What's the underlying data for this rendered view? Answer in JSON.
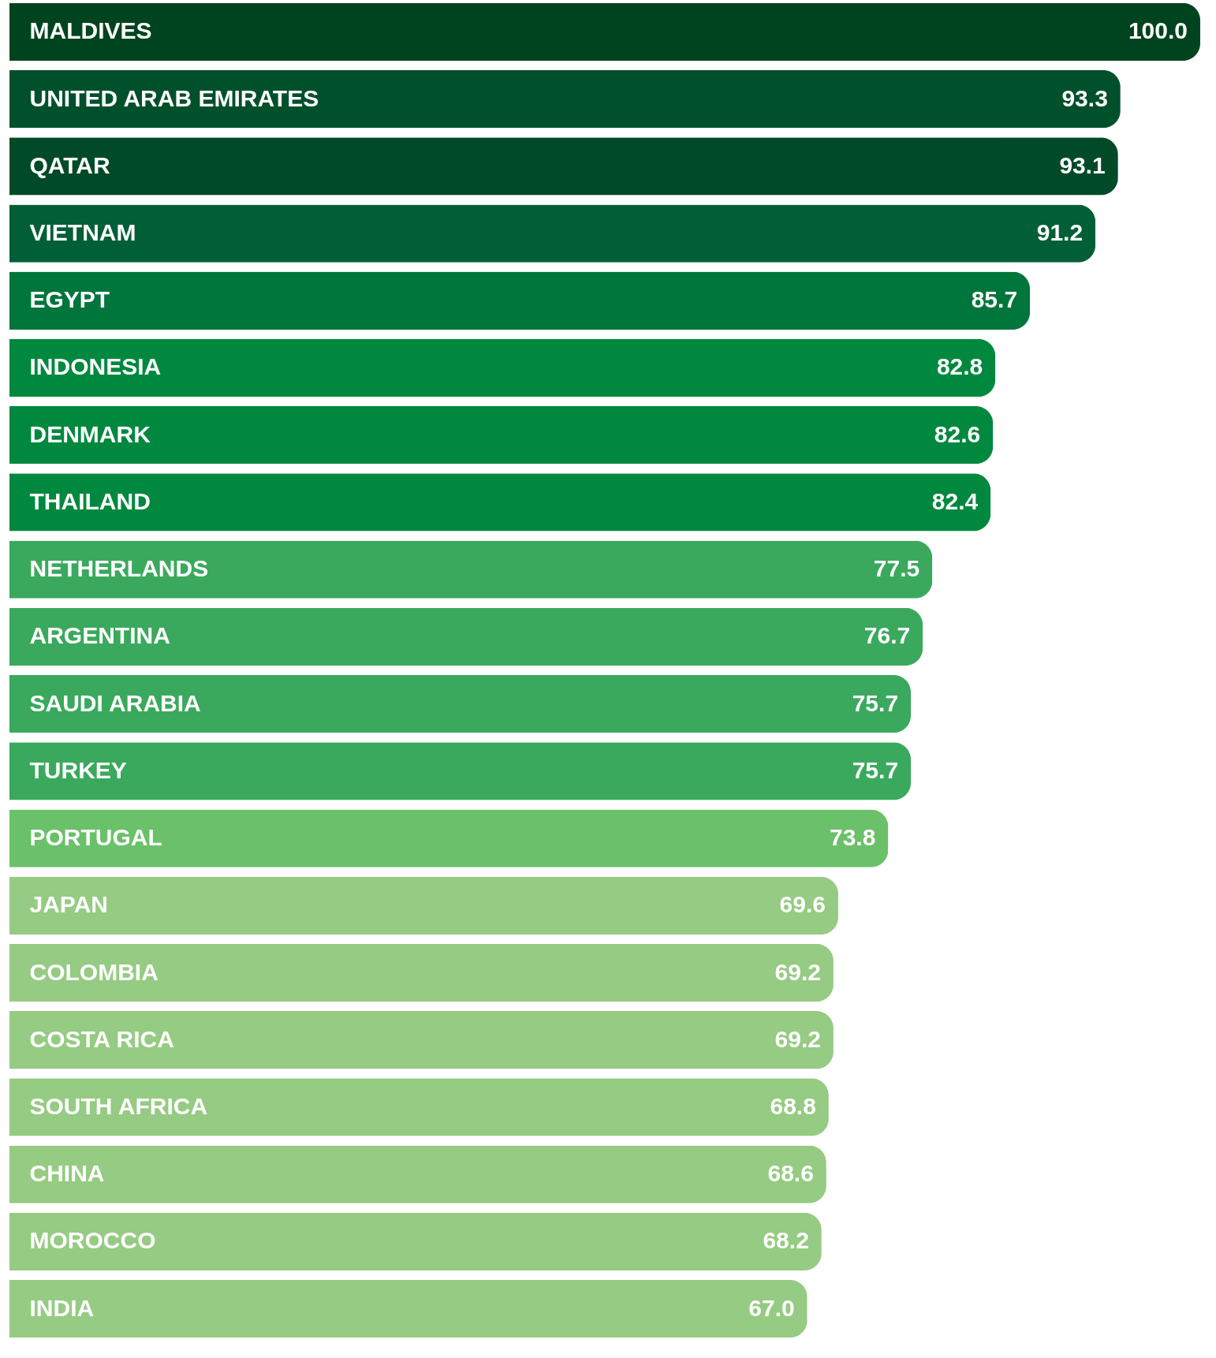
{
  "chart_data": {
    "type": "bar",
    "orientation": "horizontal",
    "value_labels": [
      "100.0",
      "93.3",
      "93.1",
      "91.2",
      "85.7",
      "82.8",
      "82.6",
      "82.4",
      "77.5",
      "76.7",
      "75.7",
      "75.7",
      "73.8",
      "69.6",
      "69.2",
      "69.2",
      "68.8",
      "68.6",
      "68.2",
      "67.0"
    ],
    "categories": [
      "MALDIVES",
      "UNITED ARAB EMIRATES",
      "QATAR",
      "VIETNAM",
      "EGYPT",
      "INDONESIA",
      "DENMARK",
      "THAILAND",
      "NETHERLANDS",
      "ARGENTINA",
      "SAUDI ARABIA",
      "TURKEY",
      "PORTUGAL",
      "JAPAN",
      "COLOMBIA",
      "COSTA RICA",
      "SOUTH AFRICA",
      "CHINA",
      "MOROCCO",
      "INDIA"
    ],
    "values": [
      100.0,
      93.3,
      93.1,
      91.2,
      85.7,
      82.8,
      82.6,
      82.4,
      77.5,
      76.7,
      75.7,
      75.7,
      73.8,
      69.6,
      69.2,
      69.2,
      68.8,
      68.6,
      68.2,
      67.0
    ],
    "colors": [
      "#00441f",
      "#00502c",
      "#004a28",
      "#005f36",
      "#00753c",
      "#00883f",
      "#00883f",
      "#00883f",
      "#3aa95d",
      "#3aa95d",
      "#3aa95d",
      "#3aa95d",
      "#6bc06a",
      "#95cb82",
      "#95cb82",
      "#95cb82",
      "#95cb82",
      "#95cb82",
      "#95cb82",
      "#95cb82"
    ]
  }
}
